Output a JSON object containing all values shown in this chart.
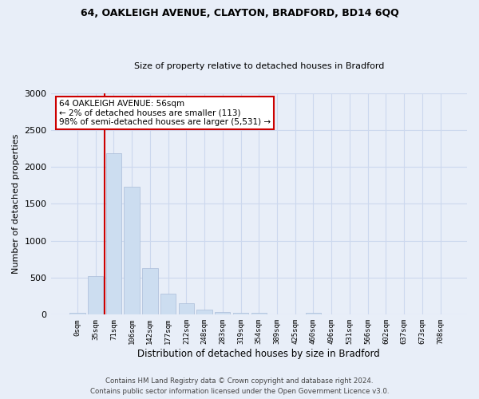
{
  "title1": "64, OAKLEIGH AVENUE, CLAYTON, BRADFORD, BD14 6QQ",
  "title2": "Size of property relative to detached houses in Bradford",
  "xlabel": "Distribution of detached houses by size in Bradford",
  "ylabel": "Number of detached properties",
  "categories": [
    "0sqm",
    "35sqm",
    "71sqm",
    "106sqm",
    "142sqm",
    "177sqm",
    "212sqm",
    "248sqm",
    "283sqm",
    "319sqm",
    "354sqm",
    "389sqm",
    "425sqm",
    "460sqm",
    "496sqm",
    "531sqm",
    "566sqm",
    "602sqm",
    "637sqm",
    "673sqm",
    "708sqm"
  ],
  "values": [
    20,
    520,
    2180,
    1730,
    635,
    285,
    150,
    65,
    40,
    30,
    20,
    5,
    5,
    20,
    5,
    0,
    0,
    0,
    0,
    0,
    0
  ],
  "bar_color": "#ccddf0",
  "bar_edge_color": "#aabcd8",
  "vline_color": "#cc0000",
  "vline_x_index": 1.5,
  "annotation_text": "64 OAKLEIGH AVENUE: 56sqm\n← 2% of detached houses are smaller (113)\n98% of semi-detached houses are larger (5,531) →",
  "annotation_box_color": "white",
  "annotation_box_edge": "#cc0000",
  "ylim": [
    0,
    3000
  ],
  "yticks": [
    0,
    500,
    1000,
    1500,
    2000,
    2500,
    3000
  ],
  "footer1": "Contains HM Land Registry data © Crown copyright and database right 2024.",
  "footer2": "Contains public sector information licensed under the Open Government Licence v3.0.",
  "grid_color": "#ccd8ee",
  "background_color": "#e8eef8",
  "plot_bg_color": "#e8eef8"
}
